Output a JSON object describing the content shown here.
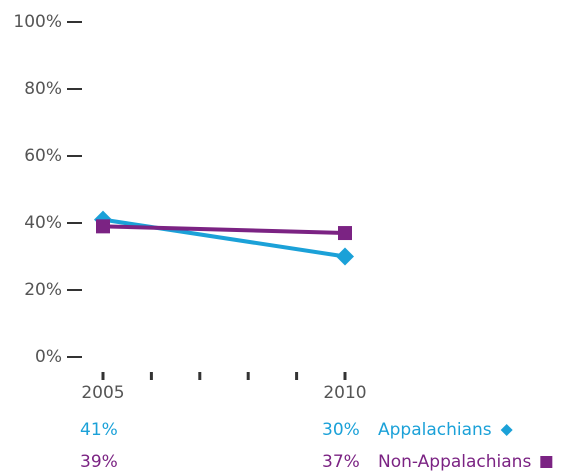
{
  "chart_data": {
    "type": "line",
    "x": [
      2005,
      2010
    ],
    "xlim": [
      2005,
      2010
    ],
    "xticks": [
      2005,
      {
        "value": 2006,
        "label": null
      },
      {
        "value": 2007,
        "label": null
      },
      {
        "value": 2008,
        "label": null
      },
      {
        "value": 2009,
        "label": null
      },
      2010
    ],
    "ylim": [
      0,
      100
    ],
    "yticks": [
      {
        "value": 0,
        "label": "0%"
      },
      {
        "value": 20,
        "label": "20%"
      },
      {
        "value": 40,
        "label": "40%"
      },
      {
        "value": 60,
        "label": "60%"
      },
      {
        "value": 80,
        "label": "80%"
      },
      {
        "value": 100,
        "label": "100%"
      }
    ],
    "series": [
      {
        "name": "Appalachians",
        "color": "#1ba1d8",
        "marker": "diamond",
        "values": [
          41,
          30
        ],
        "value_labels": [
          "41%",
          "30%"
        ]
      },
      {
        "name": "Non-Appalachians",
        "color": "#7b2383",
        "marker": "square",
        "values": [
          39,
          37
        ],
        "value_labels": [
          "39%",
          "37%"
        ]
      }
    ]
  }
}
